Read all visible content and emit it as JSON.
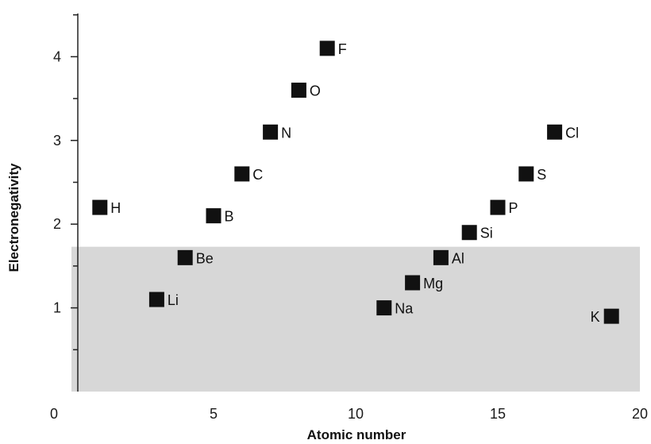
{
  "chart_data": {
    "type": "scatter",
    "xlabel": "Atomic number",
    "ylabel": "Electronegativity",
    "xlim": [
      0,
      20
    ],
    "ylim": [
      0,
      4.5
    ],
    "x_ticks": [
      "0",
      "5",
      "10",
      "15",
      "20"
    ],
    "y_ticks": [
      "1",
      "2",
      "3",
      "4"
    ],
    "shaded_region": {
      "y_max": 1.73,
      "color": "#d7d7d7"
    },
    "marker_color": "#111111",
    "points": [
      {
        "label": "H",
        "x": 1,
        "y": 2.2
      },
      {
        "label": "Li",
        "x": 3,
        "y": 1.1
      },
      {
        "label": "Be",
        "x": 4,
        "y": 1.6
      },
      {
        "label": "B",
        "x": 5,
        "y": 2.1
      },
      {
        "label": "C",
        "x": 6,
        "y": 2.6
      },
      {
        "label": "N",
        "x": 7,
        "y": 3.1
      },
      {
        "label": "O",
        "x": 8,
        "y": 3.6
      },
      {
        "label": "F",
        "x": 9,
        "y": 4.1
      },
      {
        "label": "Na",
        "x": 11,
        "y": 1.0
      },
      {
        "label": "Mg",
        "x": 12,
        "y": 1.3
      },
      {
        "label": "Al",
        "x": 13,
        "y": 1.6
      },
      {
        "label": "Si",
        "x": 14,
        "y": 1.9
      },
      {
        "label": "P",
        "x": 15,
        "y": 2.2
      },
      {
        "label": "S",
        "x": 16,
        "y": 2.6
      },
      {
        "label": "Cl",
        "x": 17,
        "y": 3.1
      },
      {
        "label": "K",
        "x": 19,
        "y": 0.9
      }
    ]
  }
}
